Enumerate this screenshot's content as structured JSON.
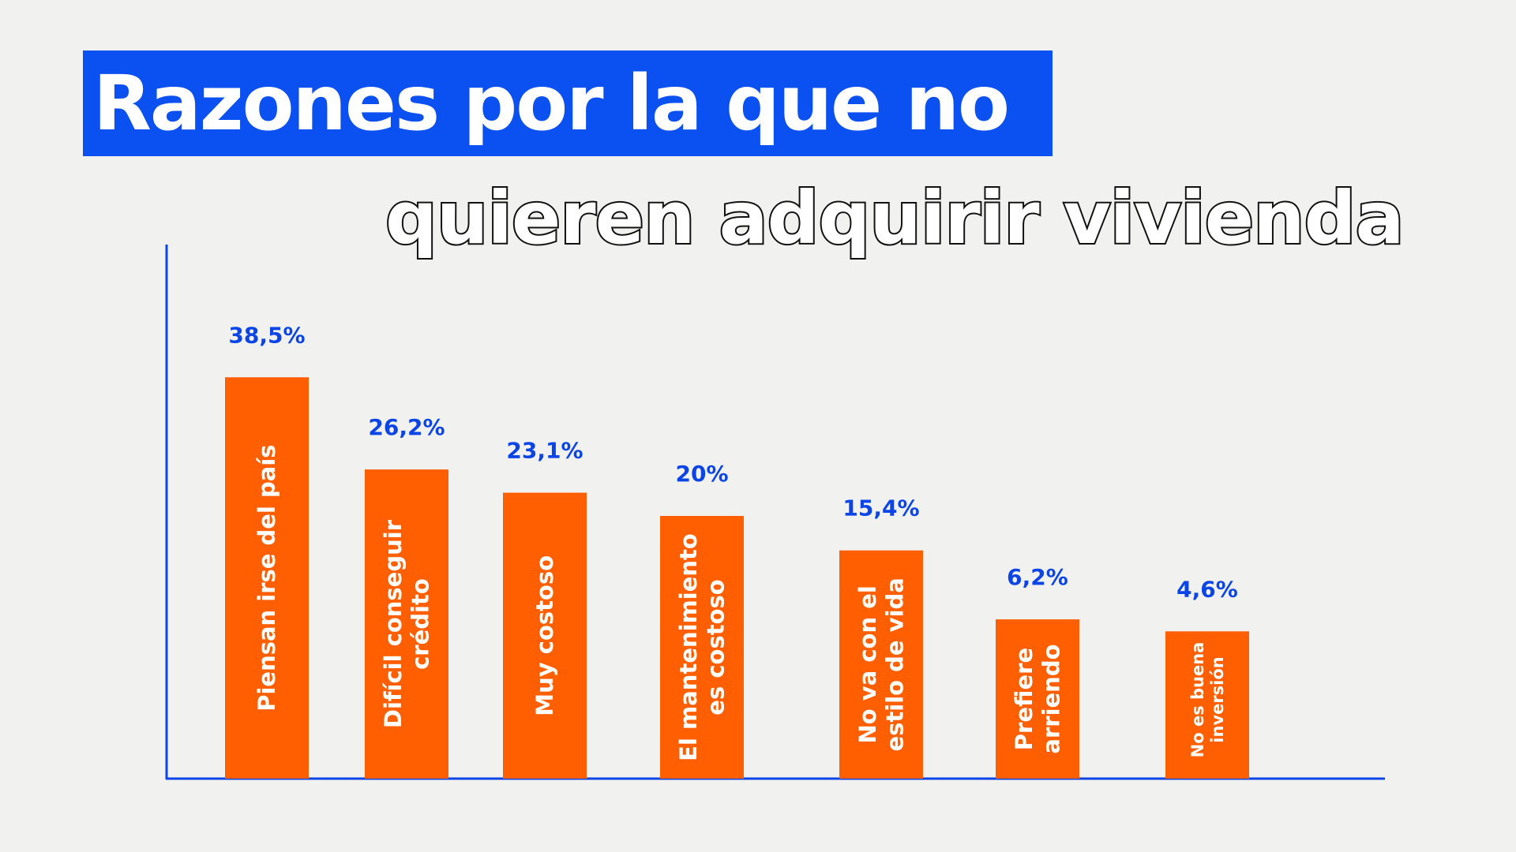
{
  "chart_data": {
    "type": "bar",
    "title": "Razones por la que no",
    "subtitle": "quieren adquirir vivienda",
    "categories": [
      [
        "Piensan irse del país"
      ],
      [
        "Difícil conseguir",
        "crédito"
      ],
      [
        "Muy costoso"
      ],
      [
        "El mantenimiento",
        "es costoso"
      ],
      [
        "No va con el",
        "estilo de vida"
      ],
      [
        "Prefiere",
        "arriendo"
      ],
      [
        "No es buena",
        "inversión"
      ]
    ],
    "values": [
      38.5,
      26.2,
      23.1,
      20,
      15.4,
      6.2,
      4.6
    ],
    "data_labels": [
      "38,5%",
      "26,2%",
      "23,1%",
      "20%",
      "15,4%",
      "6,2%",
      "4,6%"
    ],
    "unit": "%",
    "grid": false,
    "legend": "none",
    "colors": {
      "bar": "#ff5f00",
      "axis": "#0b45e8",
      "label": "#0b45e8",
      "title_bg": "#0b50f0"
    }
  }
}
